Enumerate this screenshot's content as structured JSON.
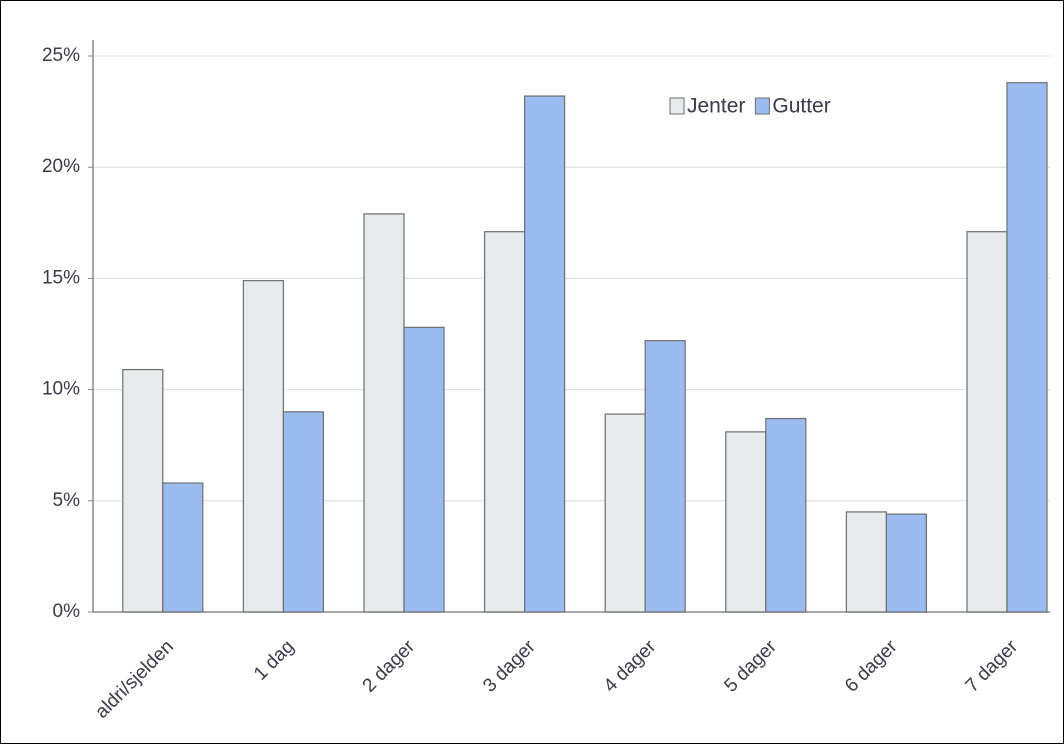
{
  "chart_data": {
    "type": "bar",
    "categories": [
      "aldri/sjelden",
      "1 dag",
      "2 dager",
      "3 dager",
      "4 dager",
      "5 dager",
      "6 dager",
      "7 dager"
    ],
    "series": [
      {
        "name": "Jenter",
        "color": "#e7ebeb",
        "values": [
          10.9,
          14.9,
          17.9,
          17.1,
          8.9,
          8.1,
          4.5,
          17.1
        ]
      },
      {
        "name": "Gutter",
        "color": "#9abcf0",
        "values": [
          5.8,
          9.0,
          12.8,
          23.2,
          12.2,
          8.7,
          4.4,
          23.8
        ]
      }
    ],
    "ylim": [
      0,
      25
    ],
    "yticks": [
      {
        "value": 0,
        "label": "0%"
      },
      {
        "value": 5,
        "label": "5%"
      },
      {
        "value": 10,
        "label": "10%"
      },
      {
        "value": 15,
        "label": "15%"
      },
      {
        "value": 20,
        "label": "20%"
      },
      {
        "value": 25,
        "label": "25%"
      }
    ],
    "grid": true
  }
}
